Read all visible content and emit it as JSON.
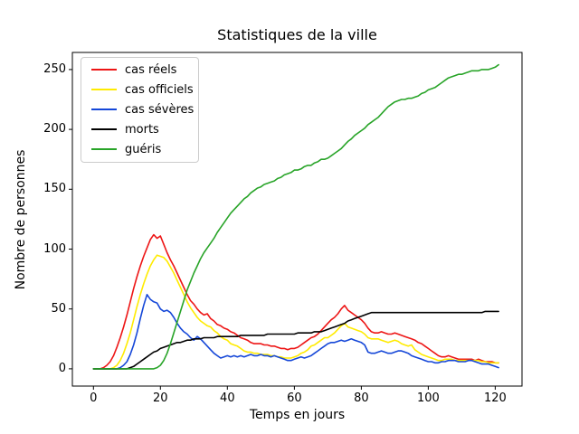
{
  "chart_data": {
    "type": "line",
    "title": "Statistiques de la ville",
    "xlabel": "Temps en jours",
    "ylabel": "Nombre de personnes",
    "xlim": [
      -6.3,
      128.0
    ],
    "ylim": [
      -14.4,
      264.3
    ],
    "xticks": [
      0,
      20,
      40,
      60,
      80,
      100,
      120
    ],
    "yticks": [
      0,
      50,
      100,
      150,
      200,
      250
    ],
    "grid": false,
    "legend_position": "upper left",
    "x": [
      0,
      1,
      2,
      3,
      4,
      5,
      6,
      7,
      8,
      9,
      10,
      11,
      12,
      13,
      14,
      15,
      16,
      17,
      18,
      19,
      20,
      21,
      22,
      23,
      24,
      25,
      26,
      27,
      28,
      29,
      30,
      31,
      32,
      33,
      34,
      35,
      36,
      37,
      38,
      39,
      40,
      41,
      42,
      43,
      44,
      45,
      46,
      47,
      48,
      49,
      50,
      51,
      52,
      53,
      54,
      55,
      56,
      57,
      58,
      59,
      60,
      61,
      62,
      63,
      64,
      65,
      66,
      67,
      68,
      69,
      70,
      71,
      72,
      73,
      74,
      75,
      76,
      77,
      78,
      79,
      80,
      81,
      82,
      83,
      84,
      85,
      86,
      87,
      88,
      89,
      90,
      91,
      92,
      93,
      94,
      95,
      96,
      97,
      98,
      99,
      100,
      101,
      102,
      103,
      104,
      105,
      106,
      107,
      108,
      109,
      110,
      111,
      112,
      113,
      114,
      115,
      116,
      117,
      118,
      119,
      120,
      121
    ],
    "series": [
      {
        "id": "cas-reels",
        "name": "cas réels",
        "color": "#ed1515",
        "values": [
          0,
          0,
          0,
          1,
          3,
          6,
          11,
          18,
          26,
          35,
          45,
          56,
          67,
          77,
          86,
          94,
          101,
          108,
          112,
          109,
          111,
          104,
          97,
          91,
          86,
          80,
          74,
          68,
          62,
          57,
          54,
          50,
          47,
          45,
          46,
          42,
          40,
          37,
          36,
          34,
          33,
          31,
          30,
          28,
          26,
          25,
          24,
          22,
          21,
          21,
          21,
          20,
          20,
          19,
          19,
          18,
          17,
          17,
          16,
          17,
          17,
          18,
          20,
          22,
          24,
          26,
          27,
          29,
          32,
          35,
          38,
          41,
          43,
          46,
          50,
          53,
          49,
          47,
          45,
          43,
          41,
          38,
          34,
          31,
          30,
          30,
          31,
          30,
          29,
          29,
          30,
          29,
          28,
          27,
          26,
          25,
          24,
          22,
          21,
          19,
          17,
          15,
          13,
          11,
          10,
          10,
          11,
          10,
          9,
          8,
          8,
          8,
          8,
          8,
          7,
          8,
          7,
          6,
          6,
          6,
          5,
          5
        ]
      },
      {
        "id": "cas-officiels",
        "name": "cas officiels",
        "color": "#ffeb00",
        "values": [
          0,
          0,
          0,
          0,
          0,
          0,
          1,
          3,
          7,
          13,
          21,
          30,
          41,
          52,
          62,
          71,
          79,
          86,
          91,
          95,
          94,
          93,
          90,
          85,
          80,
          74,
          68,
          62,
          56,
          51,
          47,
          43,
          40,
          38,
          36,
          35,
          32,
          30,
          27,
          25,
          24,
          21,
          20,
          19,
          17,
          15,
          14,
          14,
          13,
          13,
          12,
          12,
          12,
          11,
          11,
          10,
          10,
          9,
          9,
          9,
          10,
          11,
          13,
          14,
          16,
          19,
          20,
          22,
          24,
          26,
          26,
          28,
          30,
          33,
          36,
          38,
          35,
          34,
          33,
          32,
          31,
          29,
          26,
          25,
          25,
          25,
          24,
          23,
          22,
          23,
          24,
          23,
          21,
          20,
          19,
          20,
          16,
          14,
          12,
          11,
          10,
          9,
          8,
          7,
          7,
          8,
          8,
          8,
          7,
          7,
          7,
          7,
          7,
          7,
          7,
          7,
          6,
          6,
          5,
          5,
          5,
          5
        ]
      },
      {
        "id": "cas-severes",
        "name": "cas sévères",
        "color": "#1547d8",
        "values": [
          0,
          0,
          0,
          0,
          0,
          0,
          0,
          0,
          1,
          3,
          6,
          12,
          20,
          30,
          42,
          53,
          62,
          58,
          56,
          55,
          50,
          48,
          49,
          47,
          43,
          38,
          34,
          31,
          29,
          26,
          24,
          27,
          25,
          22,
          19,
          16,
          13,
          11,
          9,
          10,
          11,
          10,
          11,
          10,
          11,
          10,
          11,
          12,
          11,
          11,
          12,
          11,
          11,
          10,
          11,
          10,
          9,
          8,
          7,
          7,
          8,
          9,
          10,
          9,
          10,
          11,
          13,
          15,
          17,
          19,
          21,
          22,
          22,
          23,
          24,
          23,
          24,
          25,
          24,
          23,
          22,
          20,
          14,
          13,
          13,
          14,
          15,
          14,
          13,
          13,
          14,
          15,
          15,
          14,
          13,
          11,
          10,
          9,
          8,
          7,
          6,
          6,
          5,
          5,
          6,
          6,
          7,
          7,
          7,
          6,
          6,
          6,
          7,
          7,
          6,
          5,
          4,
          4,
          4,
          3,
          2,
          1
        ]
      },
      {
        "id": "morts",
        "name": "morts",
        "color": "#000000",
        "values": [
          0,
          0,
          0,
          0,
          0,
          0,
          0,
          0,
          0,
          0,
          0,
          1,
          2,
          4,
          6,
          8,
          10,
          12,
          14,
          15,
          17,
          18,
          19,
          20,
          21,
          22,
          22,
          23,
          24,
          24,
          25,
          25,
          25,
          26,
          26,
          26,
          26,
          27,
          27,
          27,
          27,
          27,
          27,
          27,
          28,
          28,
          28,
          28,
          28,
          28,
          28,
          28,
          29,
          29,
          29,
          29,
          29,
          29,
          29,
          29,
          29,
          30,
          30,
          30,
          30,
          30,
          31,
          31,
          31,
          32,
          33,
          34,
          35,
          36,
          37,
          38,
          40,
          41,
          42,
          43,
          44,
          45,
          46,
          47,
          47,
          47,
          47,
          47,
          47,
          47,
          47,
          47,
          47,
          47,
          47,
          47,
          47,
          47,
          47,
          47,
          47,
          47,
          47,
          47,
          47,
          47,
          47,
          47,
          47,
          47,
          47,
          47,
          47,
          47,
          47,
          47,
          47,
          48,
          48,
          48,
          48,
          48
        ]
      },
      {
        "id": "gueris",
        "name": "guéris",
        "color": "#28a428",
        "values": [
          0,
          0,
          0,
          0,
          0,
          0,
          0,
          0,
          0,
          0,
          0,
          0,
          0,
          0,
          0,
          0,
          0,
          0,
          0,
          1,
          3,
          7,
          13,
          21,
          30,
          39,
          48,
          57,
          66,
          73,
          80,
          86,
          92,
          97,
          101,
          105,
          109,
          114,
          118,
          122,
          126,
          130,
          133,
          136,
          139,
          142,
          144,
          147,
          149,
          151,
          152,
          154,
          155,
          156,
          157,
          159,
          160,
          162,
          163,
          164,
          166,
          166,
          167,
          169,
          170,
          170,
          172,
          173,
          175,
          175,
          176,
          178,
          180,
          182,
          184,
          187,
          190,
          192,
          195,
          197,
          199,
          201,
          204,
          206,
          208,
          210,
          213,
          216,
          219,
          221,
          223,
          224,
          225,
          225,
          226,
          226,
          227,
          228,
          230,
          231,
          233,
          234,
          235,
          237,
          239,
          241,
          243,
          244,
          245,
          246,
          246,
          247,
          248,
          249,
          249,
          249,
          250,
          250,
          250,
          251,
          252,
          254
        ]
      }
    ]
  }
}
